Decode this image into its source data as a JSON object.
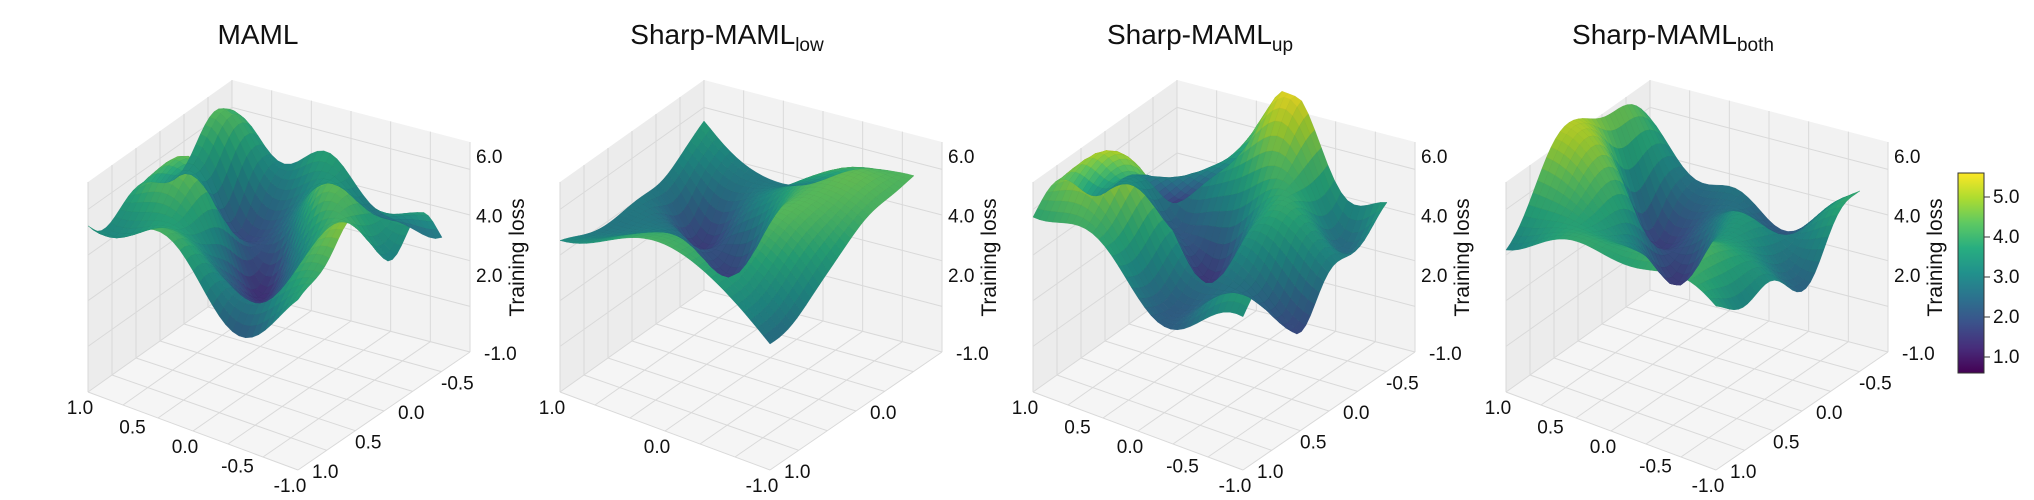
{
  "chart_data": [
    {
      "type": "surface",
      "title": "MAML",
      "title_sub": "",
      "zlabel": "Training loss",
      "x_ticks": [
        "1.0",
        "0.5",
        "0.0",
        "-0.5",
        "-1.0"
      ],
      "y_ticks": [
        "-1.0",
        "-0.5",
        "0.0",
        "0.5",
        "1.0"
      ],
      "z_ticks": [
        "2.0",
        "4.0",
        "6.0"
      ],
      "xlim": [
        -1.0,
        1.0
      ],
      "ylim": [
        -1.0,
        1.0
      ],
      "zlim": [
        0.5,
        6.5
      ],
      "z_range": [
        0.7,
        5.8
      ],
      "roughness": "high",
      "grid": true
    },
    {
      "type": "surface",
      "title": "Sharp-MAML",
      "title_sub": "low",
      "zlabel": "Training loss",
      "x_ticks": [
        "1.0",
        "0.0",
        "-1.0"
      ],
      "y_ticks": [
        "-1.0",
        "0.0",
        "1.0"
      ],
      "z_ticks": [
        "2.0",
        "4.0",
        "6.0"
      ],
      "xlim": [
        -1.0,
        1.0
      ],
      "ylim": [
        -1.0,
        1.0
      ],
      "zlim": [
        0.5,
        6.5
      ],
      "z_range": [
        0.9,
        5.9
      ],
      "roughness": "low",
      "grid": true
    },
    {
      "type": "surface",
      "title": "Sharp-MAML",
      "title_sub": "up",
      "zlabel": "Training loss",
      "x_ticks": [
        "1.0",
        "0.5",
        "0.0",
        "-0.5",
        "-1.0"
      ],
      "y_ticks": [
        "-1.0",
        "-0.5",
        "0.0",
        "0.5",
        "1.0"
      ],
      "z_ticks": [
        "2.0",
        "4.0",
        "6.0"
      ],
      "xlim": [
        -1.0,
        1.0
      ],
      "ylim": [
        -1.0,
        1.0
      ],
      "zlim": [
        0.5,
        6.5
      ],
      "z_range": [
        0.8,
        5.9
      ],
      "roughness": "high",
      "grid": true
    },
    {
      "type": "surface",
      "title": "Sharp-MAML",
      "title_sub": "both",
      "zlabel": "Training loss",
      "x_ticks": [
        "1.0",
        "0.5",
        "0.0",
        "-0.5",
        "-1.0"
      ],
      "y_ticks": [
        "-1.0",
        "-0.5",
        "0.0",
        "0.5",
        "1.0"
      ],
      "z_ticks": [
        "2.0",
        "4.0",
        "6.0"
      ],
      "xlim": [
        -1.0,
        1.0
      ],
      "ylim": [
        -1.0,
        1.0
      ],
      "zlim": [
        0.5,
        6.5
      ],
      "z_range": [
        0.6,
        6.0
      ],
      "roughness": "medium",
      "grid": true
    }
  ],
  "colorbar": {
    "colormap": "viridis",
    "ticks": [
      "1.0",
      "2.0",
      "3.0",
      "4.0",
      "5.0"
    ],
    "tick_values": [
      1.0,
      2.0,
      3.0,
      4.0,
      5.0
    ],
    "range": [
      0.6,
      5.6
    ]
  },
  "colors": {
    "pane": "#f2f2f2",
    "grid": "#d9d9d9",
    "viridis": [
      "#440154",
      "#472d7b",
      "#3b528b",
      "#2c728e",
      "#21918c",
      "#28ae80",
      "#5ec962",
      "#addc30",
      "#fde725"
    ]
  }
}
